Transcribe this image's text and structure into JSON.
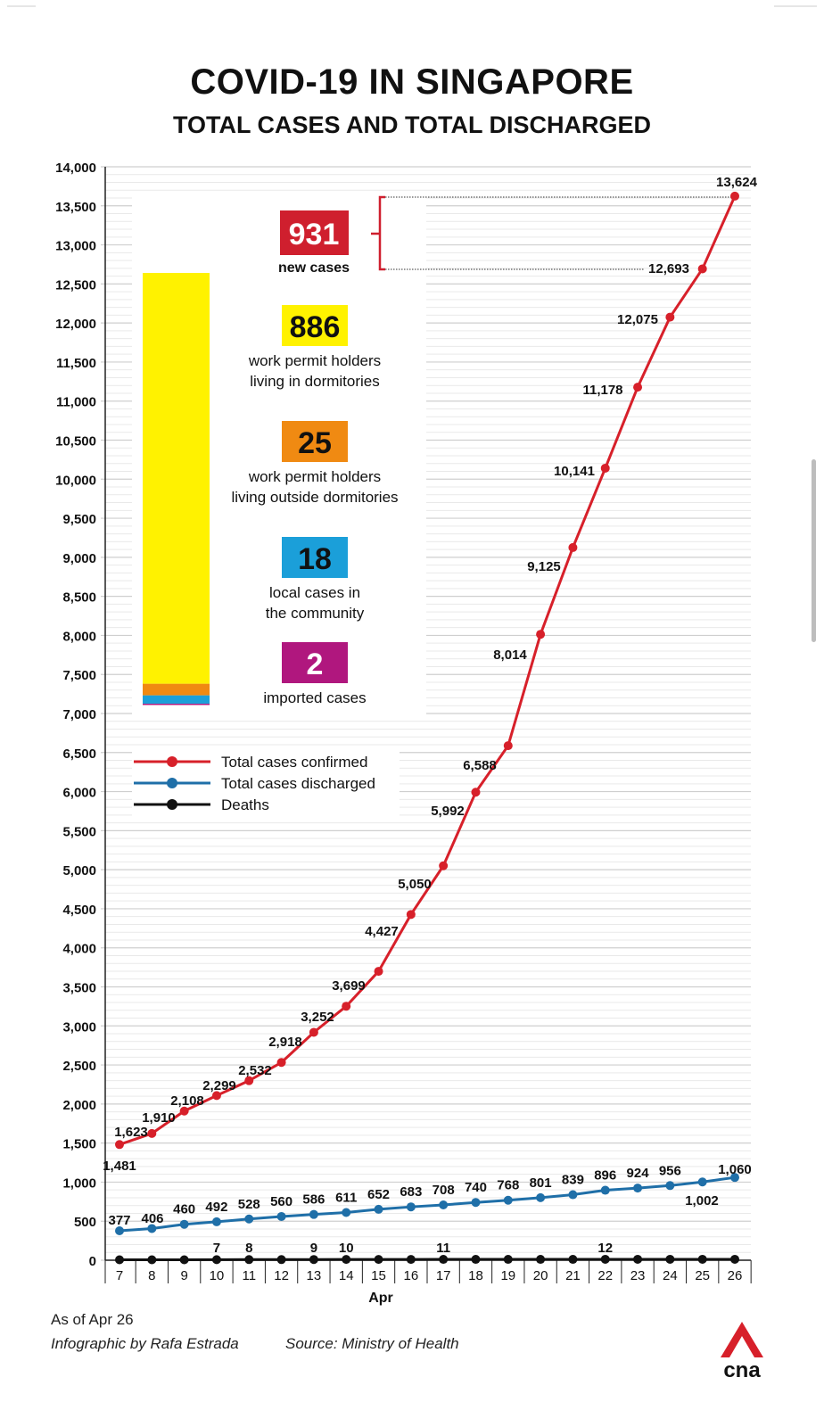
{
  "title": "COVID-19 IN SINGAPORE",
  "subtitle": "TOTAL CASES AND TOTAL DISCHARGED",
  "chart_data": {
    "type": "line",
    "xlabel": "Apr",
    "categories": [
      "7",
      "8",
      "9",
      "10",
      "11",
      "12",
      "13",
      "14",
      "15",
      "16",
      "17",
      "18",
      "19",
      "20",
      "21",
      "22",
      "23",
      "24",
      "25",
      "26"
    ],
    "ylim": [
      0,
      14000
    ],
    "yticks": [
      0,
      500,
      1000,
      1500,
      2000,
      2500,
      3000,
      3500,
      4000,
      4500,
      5000,
      5500,
      6000,
      6500,
      7000,
      7500,
      8000,
      8500,
      9000,
      9500,
      10000,
      10500,
      11000,
      11500,
      12000,
      12500,
      13000,
      13500,
      14000
    ],
    "ytick_labels": [
      "0",
      "500",
      "1,000",
      "1,500",
      "2,000",
      "2,500",
      "3,000",
      "3,500",
      "4,000",
      "4,500",
      "5,000",
      "5,500",
      "6,000",
      "6,500",
      "7,000",
      "7,500",
      "8,000",
      "8,500",
      "9,000",
      "9,500",
      "10,000",
      "10,500",
      "11,000",
      "11,500",
      "12,000",
      "12,500",
      "13,000",
      "13,500",
      "14,000"
    ],
    "grid": true,
    "series": [
      {
        "name": "Total cases confirmed",
        "color": "#d7202a",
        "values": [
          1481,
          1623,
          1910,
          2108,
          2299,
          2532,
          2918,
          3252,
          3699,
          4427,
          5050,
          5992,
          6588,
          8014,
          9125,
          10141,
          11178,
          12075,
          12693,
          13624
        ],
        "labels": [
          "1,481",
          "1,623",
          "1,910",
          "2,108",
          "2,299",
          "2,532",
          "2,918",
          "3,252",
          "3,699",
          "4,427",
          "5,050",
          "5,992",
          "6,588",
          "8,014",
          "9,125",
          "10,141",
          "11,178",
          "12,075",
          "12,693",
          "13,624"
        ]
      },
      {
        "name": "Total cases discharged",
        "color": "#1f6fa8",
        "values": [
          377,
          406,
          460,
          492,
          528,
          560,
          586,
          611,
          652,
          683,
          708,
          740,
          768,
          801,
          839,
          896,
          924,
          956,
          1002,
          1060
        ],
        "labels": [
          "377",
          "406",
          "460",
          "492",
          "528",
          "560",
          "586",
          "611",
          "652",
          "683",
          "708",
          "740",
          "768",
          "801",
          "839",
          "896",
          "924",
          "956",
          "1,002",
          "1,060"
        ]
      },
      {
        "name": "Deaths",
        "color": "#111111",
        "values": [
          6,
          6,
          6,
          7,
          8,
          8,
          9,
          10,
          10,
          10,
          11,
          11,
          11,
          11,
          11,
          12,
          12,
          12,
          12,
          12
        ],
        "labels": [
          "",
          "",
          "",
          "7",
          "8",
          "",
          "9",
          "10",
          "",
          "",
          "11",
          "",
          "",
          "",
          "",
          "12",
          "",
          "",
          "",
          ""
        ]
      }
    ],
    "breakdown": {
      "total_value": "931",
      "total_label": "new cases",
      "items": [
        {
          "value": "886",
          "label_lines": [
            "work permit holders",
            "living in dormitories"
          ],
          "color": "#fff200",
          "count": 886
        },
        {
          "value": "25",
          "label_lines": [
            "work permit holders",
            "living outside dormitories"
          ],
          "color": "#f08a12",
          "count": 25
        },
        {
          "value": "18",
          "label_lines": [
            "local cases in",
            "the community"
          ],
          "color": "#1b9fd9",
          "count": 18
        },
        {
          "value": "2",
          "label_lines": [
            "imported cases"
          ],
          "color": "#b0177e",
          "count": 2
        }
      ],
      "total_color": "#cf1f2e"
    }
  },
  "footer": {
    "as_of": "As of Apr 26",
    "credit": "Infographic by Rafa Estrada",
    "source": "Source: Ministry of Health"
  },
  "logo_text": "cna",
  "colors": {
    "brand": "#d7202a"
  }
}
